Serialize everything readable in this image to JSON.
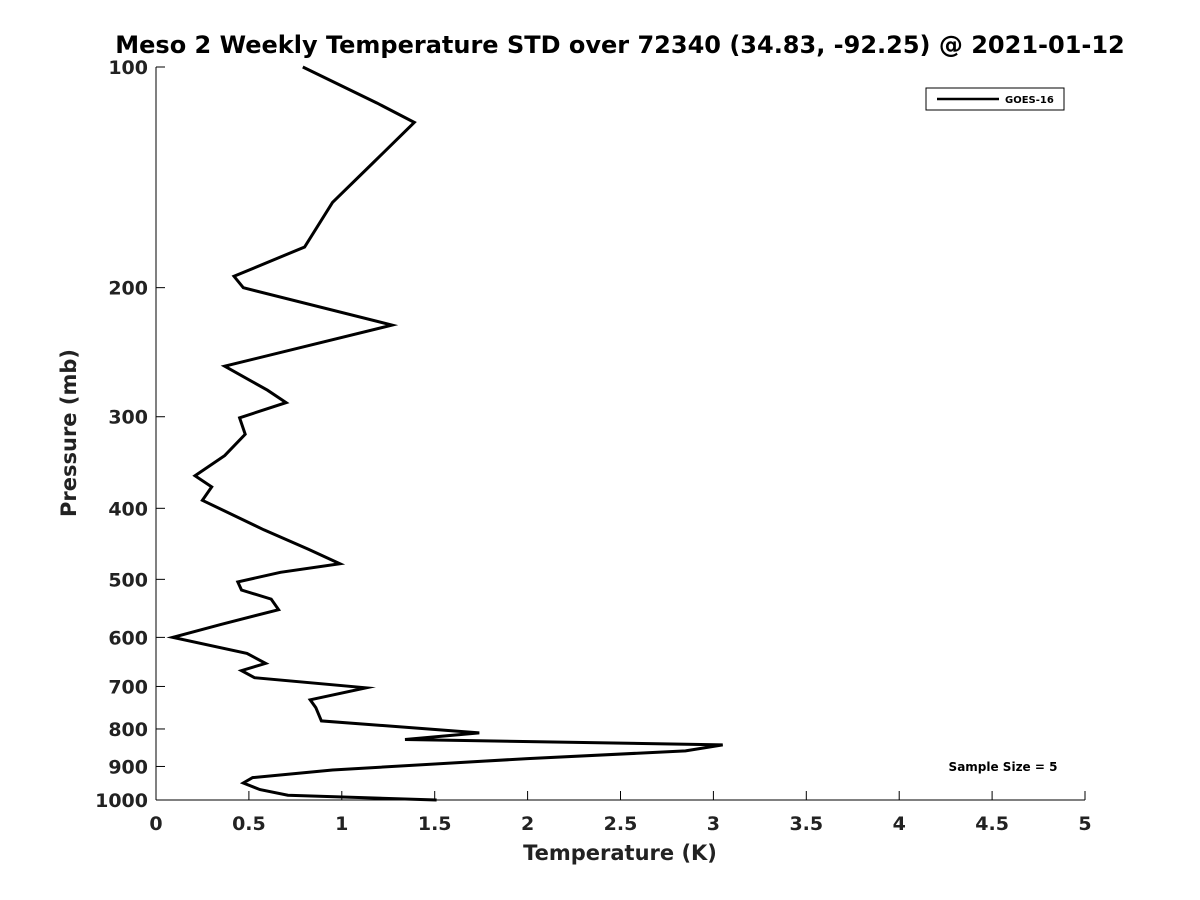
{
  "chart_data": {
    "type": "line",
    "title": "Meso 2 Weekly Temperature STD over 72340 (34.83, -92.25) @ 2021-01-12",
    "xlabel": "Temperature (K)",
    "ylabel": "Pressure (mb)",
    "xlim": [
      0,
      5
    ],
    "ylim": [
      100,
      1000
    ],
    "y_scale": "log",
    "y_reversed": true,
    "x_ticks": [
      0,
      0.5,
      1,
      1.5,
      2,
      2.5,
      3,
      3.5,
      4,
      4.5,
      5
    ],
    "x_tick_labels": [
      "0",
      "0.5",
      "1",
      "1.5",
      "2",
      "2.5",
      "3",
      "3.5",
      "4",
      "4.5",
      "5"
    ],
    "y_ticks": [
      100,
      200,
      300,
      400,
      500,
      600,
      700,
      800,
      900,
      1000
    ],
    "y_tick_labels": [
      "100",
      "200",
      "300",
      "400",
      "500",
      "600",
      "700",
      "800",
      "900",
      "1000"
    ],
    "grid": false,
    "legend_position": "top-right",
    "series": [
      {
        "name": "GOES-16",
        "color": "#000000",
        "points": [
          [
            0.79,
            100
          ],
          [
            1.19,
            112
          ],
          [
            1.39,
            119
          ],
          [
            1.17,
            135
          ],
          [
            0.95,
            153
          ],
          [
            0.8,
            176
          ],
          [
            0.42,
            193
          ],
          [
            0.47,
            200
          ],
          [
            1.27,
            225
          ],
          [
            0.37,
            256
          ],
          [
            0.6,
            276
          ],
          [
            0.7,
            287
          ],
          [
            0.45,
            301
          ],
          [
            0.48,
            317
          ],
          [
            0.37,
            339
          ],
          [
            0.21,
            361
          ],
          [
            0.3,
            374
          ],
          [
            0.25,
            390
          ],
          [
            0.58,
            428
          ],
          [
            0.82,
            455
          ],
          [
            0.99,
            476
          ],
          [
            0.67,
            489
          ],
          [
            0.44,
            504
          ],
          [
            0.46,
            517
          ],
          [
            0.62,
            532
          ],
          [
            0.66,
            550
          ],
          [
            0.35,
            576
          ],
          [
            0.09,
            600
          ],
          [
            0.49,
            631
          ],
          [
            0.59,
            651
          ],
          [
            0.46,
            666
          ],
          [
            0.53,
            681
          ],
          [
            1.13,
            703
          ],
          [
            0.83,
            730
          ],
          [
            0.86,
            748
          ],
          [
            0.89,
            780
          ],
          [
            1.74,
            810
          ],
          [
            1.34,
            827
          ],
          [
            3.05,
            841
          ],
          [
            2.85,
            857
          ],
          [
            2.0,
            878
          ],
          [
            0.95,
            910
          ],
          [
            0.52,
            932
          ],
          [
            0.47,
            948
          ],
          [
            0.56,
            968
          ],
          [
            0.71,
            985
          ],
          [
            1.51,
            1000
          ]
        ]
      }
    ],
    "annotations": [
      {
        "text": "Sample Size = 5",
        "position": "bottom-right"
      }
    ]
  }
}
